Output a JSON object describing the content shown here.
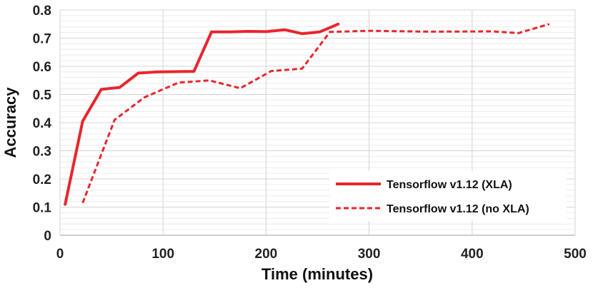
{
  "chart_data": {
    "type": "line",
    "xlabel": "Time (minutes)",
    "ylabel": "Accuracy",
    "xlim": [
      0,
      500
    ],
    "ylim": [
      0,
      0.8
    ],
    "x_ticks": [
      "0",
      "100",
      "200",
      "300",
      "400",
      "500"
    ],
    "y_ticks": [
      "0",
      "0.1",
      "0.2",
      "0.3",
      "0.4",
      "0.5",
      "0.6",
      "0.7",
      "0.8"
    ],
    "grid": true,
    "legend_position": "bottom-right",
    "series": [
      {
        "name": "Tensorflow v1.12 (XLA)",
        "style": "solid",
        "color": "#e8262d",
        "points": [
          [
            5,
            0.11
          ],
          [
            22,
            0.405
          ],
          [
            40,
            0.518
          ],
          [
            58,
            0.525
          ],
          [
            76,
            0.576
          ],
          [
            94,
            0.58
          ],
          [
            112,
            0.581
          ],
          [
            130,
            0.582
          ],
          [
            147,
            0.722
          ],
          [
            165,
            0.722
          ],
          [
            182,
            0.724
          ],
          [
            200,
            0.723
          ],
          [
            218,
            0.73
          ],
          [
            235,
            0.716
          ],
          [
            252,
            0.722
          ],
          [
            270,
            0.75
          ]
        ]
      },
      {
        "name": "Tensorflow v1.12 (no XLA)",
        "style": "dashed",
        "color": "#e8262d",
        "points": [
          [
            22,
            0.115
          ],
          [
            53,
            0.41
          ],
          [
            82,
            0.49
          ],
          [
            115,
            0.542
          ],
          [
            145,
            0.55
          ],
          [
            175,
            0.522
          ],
          [
            205,
            0.583
          ],
          [
            235,
            0.592
          ],
          [
            262,
            0.722
          ],
          [
            300,
            0.726
          ],
          [
            360,
            0.723
          ],
          [
            420,
            0.724
          ],
          [
            445,
            0.718
          ],
          [
            475,
            0.75
          ]
        ]
      }
    ]
  }
}
